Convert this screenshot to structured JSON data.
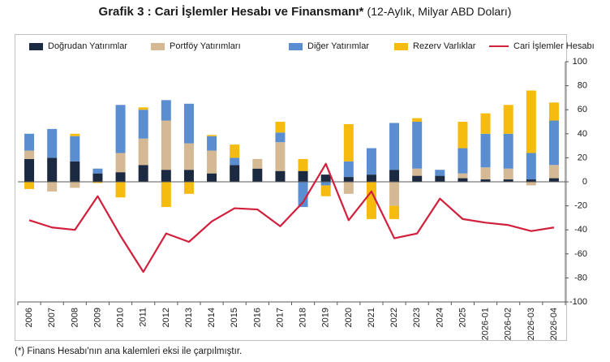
{
  "title": {
    "main": "Grafik 3 : Cari İşlemler Hesabı ve Finansmanı*",
    "sub": "(12-Aylık, Milyar ABD Doları)"
  },
  "footnote": "(*) Finans Hesabı'nın ana kalemleri eksi ile çarpılmıştır.",
  "chart_data": {
    "type": "bar",
    "stacked": true,
    "categories": [
      "2006",
      "2007",
      "2008",
      "2009",
      "2010",
      "2011",
      "2012",
      "2013",
      "2014",
      "2015",
      "2016",
      "2017",
      "2018",
      "2019",
      "2020",
      "2021",
      "2022",
      "2023",
      "2024",
      "2025",
      "2026-01",
      "2026-02",
      "2026-03",
      "2026-04"
    ],
    "ylim": [
      -100,
      100
    ],
    "yticks": [
      100,
      80,
      60,
      40,
      20,
      0,
      -20,
      -40,
      -60,
      -80,
      -100
    ],
    "y_axis_side": "right",
    "grid": false,
    "legend_position": "top",
    "series": [
      {
        "name": "Doğrudan Yatırımlar",
        "kind": "bar",
        "color": "#1b2a41",
        "values": [
          19,
          20,
          17,
          7,
          8,
          14,
          10,
          10,
          7,
          14,
          11,
          9,
          9,
          6,
          4,
          6,
          10,
          5,
          5,
          3,
          2,
          2,
          2,
          3
        ]
      },
      {
        "name": "Portföy Yatırımları",
        "kind": "bar",
        "color": "#d4b994",
        "values": [
          7,
          -8,
          -5,
          0,
          16,
          22,
          41,
          22,
          19,
          0,
          8,
          24,
          0,
          0,
          -10,
          0,
          -20,
          6,
          0,
          4,
          10,
          9,
          -3,
          11
        ]
      },
      {
        "name": "Diğer Yatırımlar",
        "kind": "bar",
        "color": "#5b8ed0",
        "values": [
          14,
          24,
          21,
          4,
          40,
          24,
          17,
          33,
          12,
          6,
          0,
          8,
          -21,
          -3,
          13,
          22,
          39,
          39,
          5,
          21,
          28,
          29,
          22,
          37
        ]
      },
      {
        "name": "Rezerv Varlıklar",
        "kind": "bar",
        "color": "#f5bb0f",
        "values": [
          -6,
          0,
          2,
          -1,
          -13,
          2,
          -21,
          -10,
          1,
          11,
          0,
          9,
          10,
          -9,
          31,
          -31,
          -11,
          3,
          0,
          22,
          17,
          24,
          52,
          15
        ]
      },
      {
        "name": "Cari İşlemler Hesabı",
        "kind": "line",
        "color": "#d21f3c",
        "values": [
          -32,
          -38,
          -40,
          -12,
          -45,
          -75,
          -43,
          -50,
          -33,
          -22,
          -23,
          -37,
          -17,
          15,
          -32,
          -8,
          -47,
          -43,
          -14,
          -31,
          -34,
          -36,
          -41,
          -38
        ]
      }
    ]
  }
}
